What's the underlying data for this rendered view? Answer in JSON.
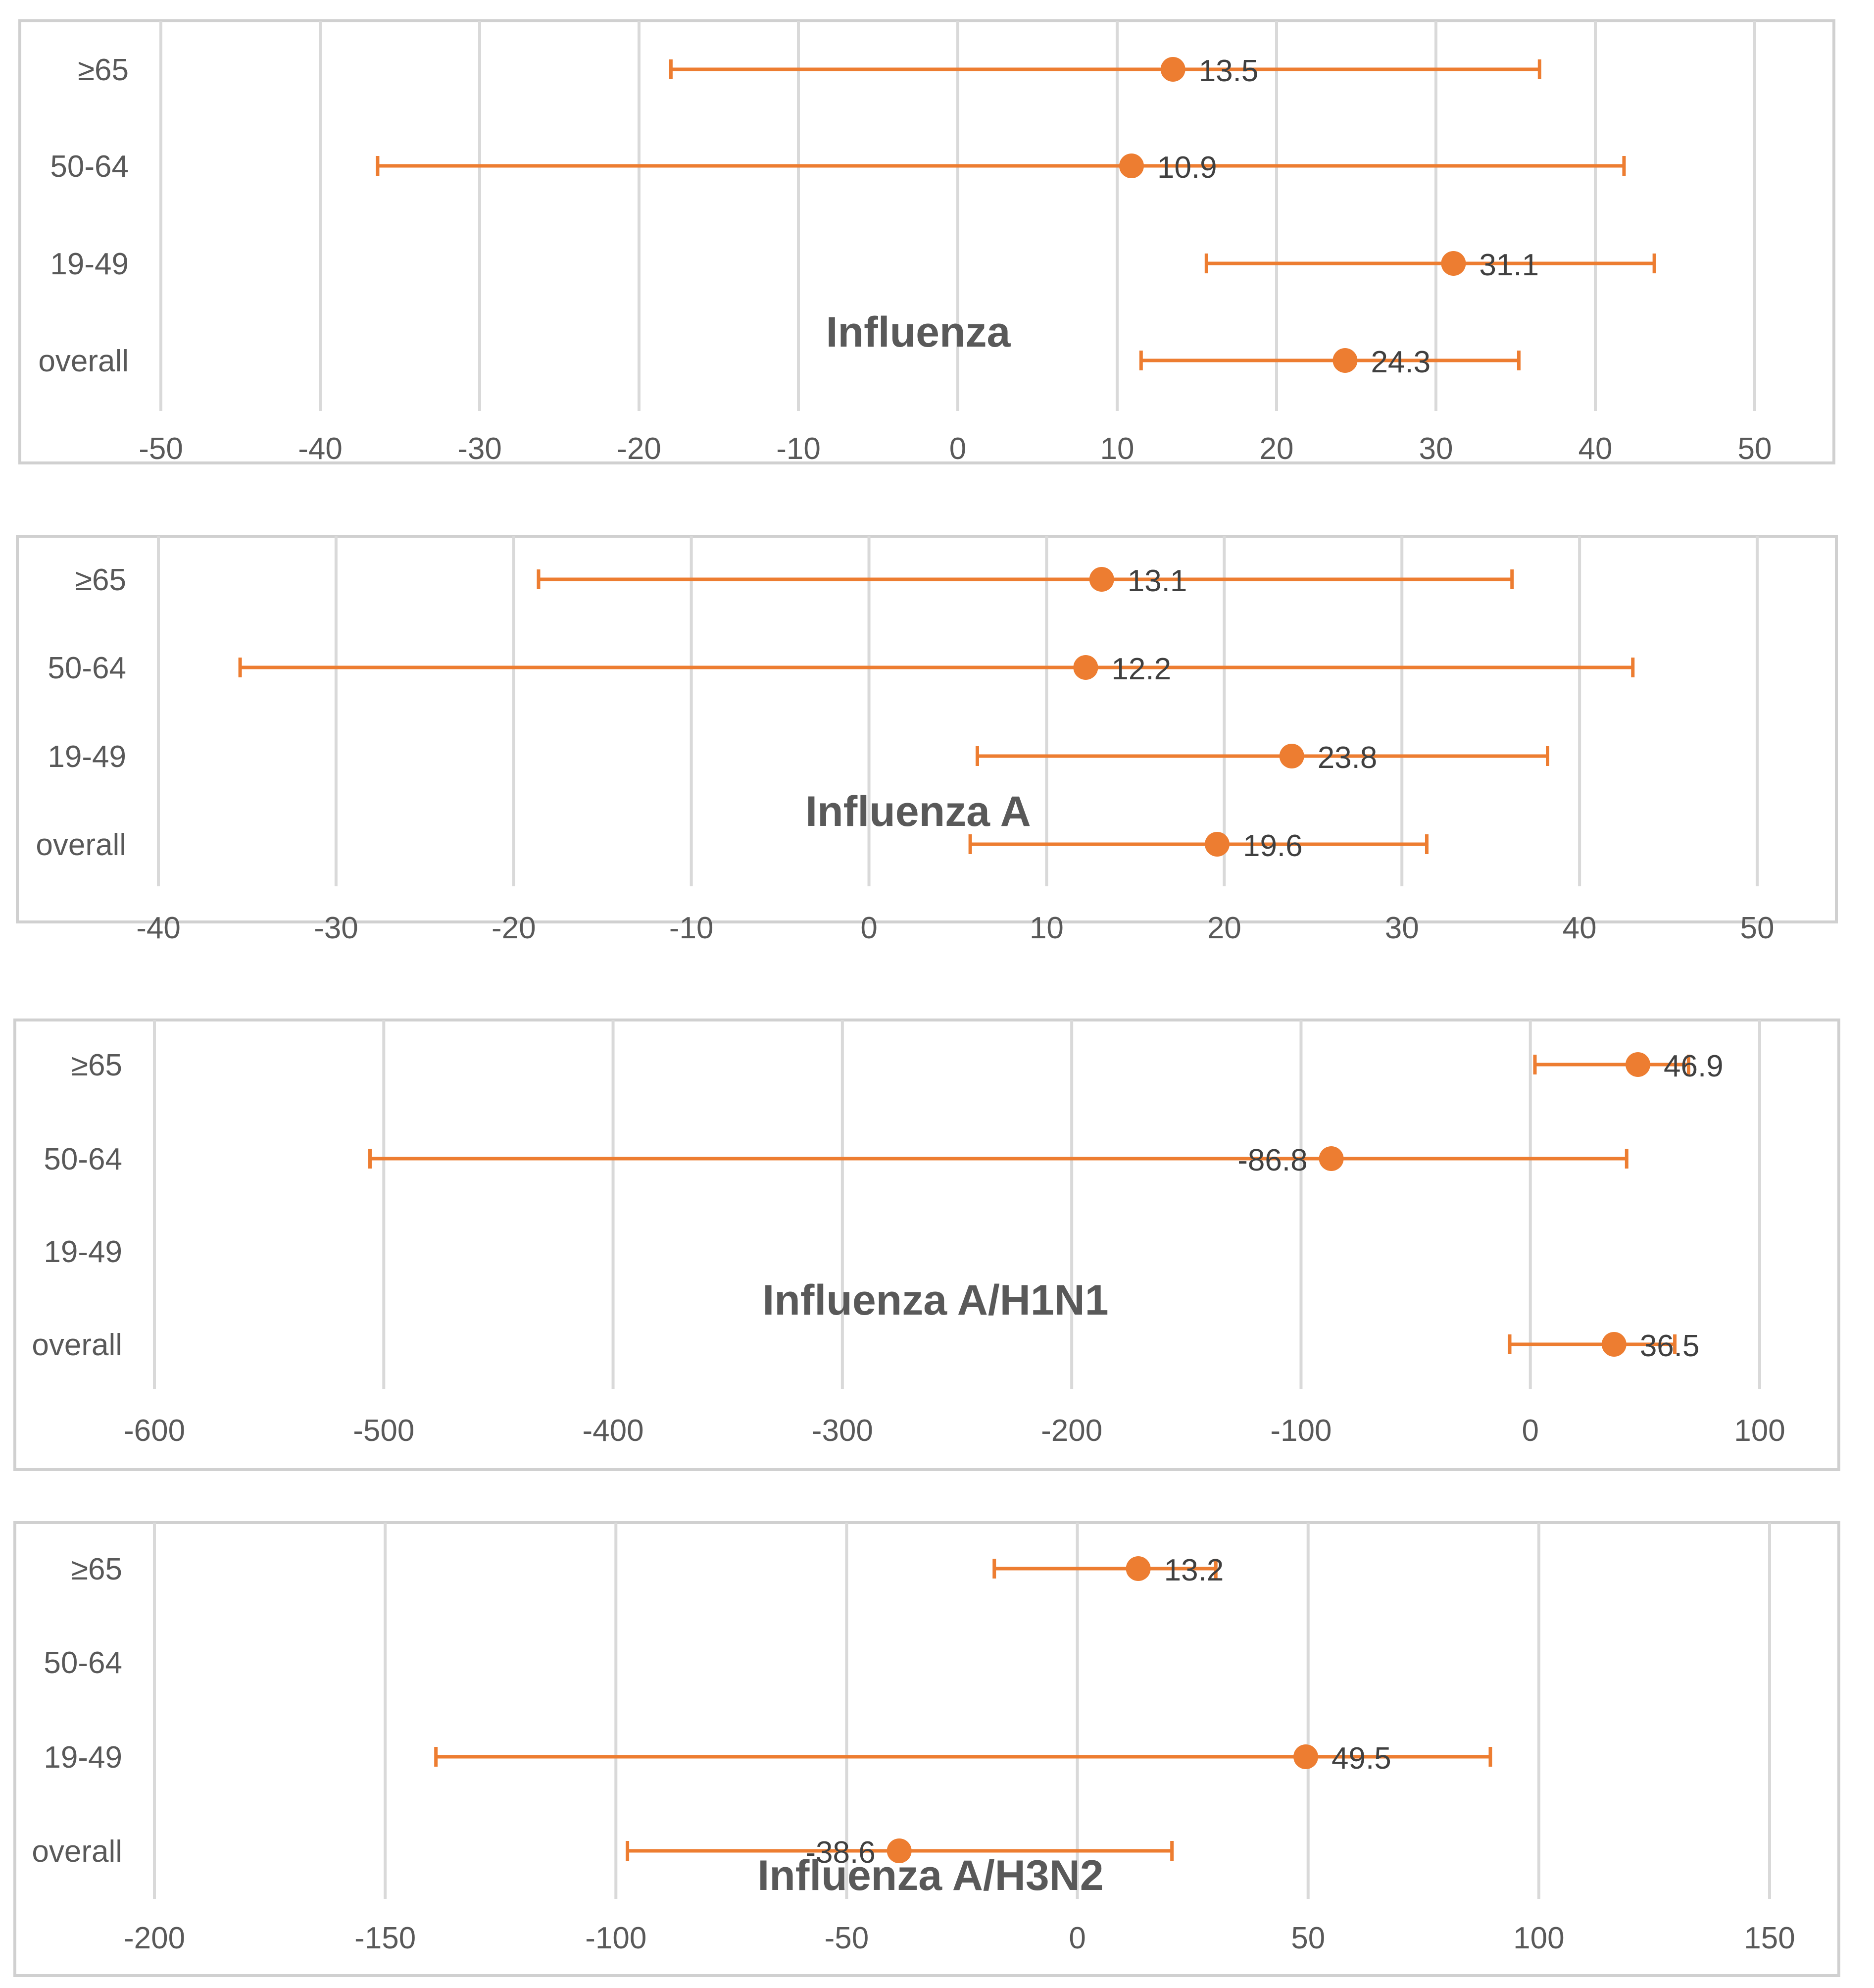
{
  "chart_data": [
    {
      "type": "scatter",
      "title": "Influenza",
      "categories": [
        "≥65",
        "50-64",
        "19-49",
        "overall"
      ],
      "xlim": [
        -50,
        50
      ],
      "xticks": [
        "-50",
        "-40",
        "-30",
        "-20",
        "-10",
        "0",
        "10",
        "20",
        "30",
        "40",
        "50"
      ],
      "series": [
        {
          "category": "≥65",
          "value": 13.5,
          "label": "13.5",
          "ci": [
            -18,
            36.5
          ]
        },
        {
          "category": "50-64",
          "value": 10.9,
          "label": "10.9",
          "ci": [
            -36.4,
            41.8
          ]
        },
        {
          "category": "19-49",
          "value": 31.1,
          "label": "31.1",
          "ci": [
            15.6,
            43.7
          ]
        },
        {
          "category": "overall",
          "value": 24.3,
          "label": "24.3",
          "ci": [
            11.5,
            35.2
          ]
        }
      ]
    },
    {
      "type": "scatter",
      "title": "Influenza A",
      "categories": [
        "≥65",
        "50-64",
        "19-49",
        "overall"
      ],
      "xlim": [
        -40,
        50
      ],
      "xticks": [
        "-40",
        "-30",
        "-20",
        "-10",
        "0",
        "10",
        "20",
        "30",
        "40",
        "50"
      ],
      "series": [
        {
          "category": "≥65",
          "value": 13.1,
          "label": "13.1",
          "ci": [
            -18.6,
            36.2
          ]
        },
        {
          "category": "50-64",
          "value": 12.2,
          "label": "12.2",
          "ci": [
            -35.4,
            43
          ]
        },
        {
          "category": "19-49",
          "value": 23.8,
          "label": "23.8",
          "ci": [
            6.1,
            38.2
          ]
        },
        {
          "category": "overall",
          "value": 19.6,
          "label": "19.6",
          "ci": [
            5.7,
            31.4
          ]
        }
      ]
    },
    {
      "type": "scatter",
      "title": "Influenza A/H1N1",
      "categories": [
        "≥65",
        "50-64",
        "19-49",
        "overall"
      ],
      "xlim": [
        -600,
        100
      ],
      "xticks": [
        "-600",
        "-500",
        "-400",
        "-300",
        "-200",
        "-100",
        "0",
        "100"
      ],
      "series": [
        {
          "category": "≥65",
          "value": 46.9,
          "label": "46.9",
          "ci": [
            2,
            69
          ]
        },
        {
          "category": "50-64",
          "value": -86.8,
          "label": "-86.8",
          "ci": [
            -506,
            42
          ]
        },
        {
          "category": "overall",
          "value": 36.5,
          "label": "36.5",
          "ci": [
            -9,
            63
          ]
        }
      ]
    },
    {
      "type": "scatter",
      "title": "Influenza A/H3N2",
      "categories": [
        "≥65",
        "50-64",
        "19-49",
        "overall"
      ],
      "xlim": [
        -200,
        150
      ],
      "xticks": [
        "-200",
        "-150",
        "-100",
        "-50",
        "0",
        "50",
        "100",
        "150"
      ],
      "series": [
        {
          "category": "≥65",
          "value": 13.2,
          "label": "13.2",
          "ci": [
            -18,
            30
          ]
        },
        {
          "category": "19-49",
          "value": 49.5,
          "label": "49.5",
          "ci": [
            -139,
            89.5
          ]
        },
        {
          "category": "overall",
          "value": -38.6,
          "label": "-38.6",
          "ci": [
            -97.5,
            20.5
          ]
        }
      ]
    }
  ],
  "colors": {
    "marker": "#ed7d31",
    "grid": "#d9d9d9",
    "text": "#595959"
  }
}
